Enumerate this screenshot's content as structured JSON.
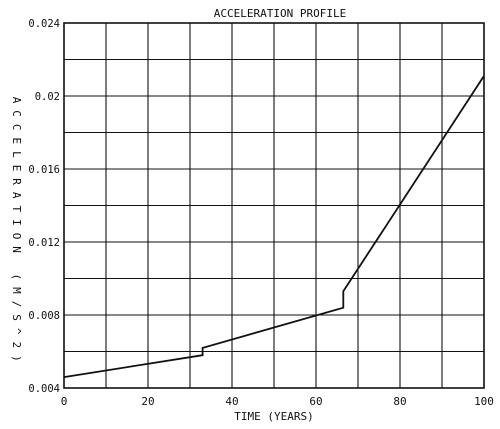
{
  "chart_data": {
    "type": "line",
    "title": "ACCELERATION PROFILE",
    "xlabel": "TIME (YEARS)",
    "ylabel": "ACCELERATION (M/S^2)",
    "xlim": [
      0,
      100
    ],
    "ylim": [
      0.004,
      0.024
    ],
    "xticks": [
      0,
      20,
      40,
      60,
      80,
      100
    ],
    "xtick_labels": [
      "0",
      "20",
      "40",
      "60",
      "80",
      "100"
    ],
    "yticks": [
      0.004,
      0.008,
      0.012,
      0.016,
      0.02,
      0.024
    ],
    "ytick_labels": [
      "0.004",
      "0.008",
      "0.012",
      "0.016",
      "0.02",
      "0.024"
    ],
    "grid": true,
    "series": [
      {
        "x": [
          0,
          33,
          33,
          66.5,
          66.5,
          100
        ],
        "y": [
          0.0046,
          0.0058,
          0.0062,
          0.0084,
          0.0093,
          0.0211
        ]
      }
    ]
  }
}
